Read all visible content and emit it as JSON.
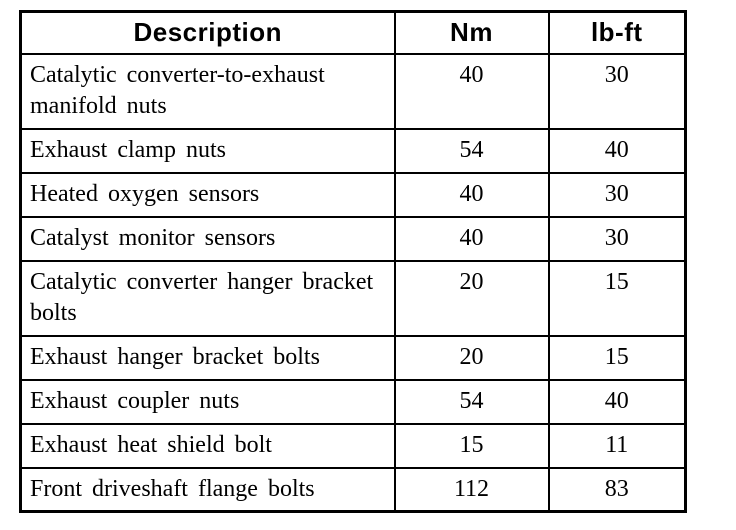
{
  "colors": {
    "border": "#000000",
    "text": "#000000",
    "background": "#ffffff"
  },
  "table": {
    "headers": {
      "description": "Description",
      "nm": "Nm",
      "lbft": "lb-ft"
    },
    "rows": [
      {
        "description": "Catalytic converter-to-exhaust manifold nuts",
        "nm": "40",
        "lbft": "30"
      },
      {
        "description": "Exhaust clamp nuts",
        "nm": "54",
        "lbft": "40"
      },
      {
        "description": "Heated oxygen sensors",
        "nm": "40",
        "lbft": "30"
      },
      {
        "description": "Catalyst monitor sensors",
        "nm": "40",
        "lbft": "30"
      },
      {
        "description": "Catalytic converter hanger bracket bolts",
        "nm": "20",
        "lbft": "15"
      },
      {
        "description": "Exhaust hanger bracket bolts",
        "nm": "20",
        "lbft": "15"
      },
      {
        "description": "Exhaust coupler nuts",
        "nm": "54",
        "lbft": "40"
      },
      {
        "description": "Exhaust heat shield bolt",
        "nm": "15",
        "lbft": "11"
      },
      {
        "description": "Front driveshaft flange bolts",
        "nm": "112",
        "lbft": "83"
      }
    ]
  }
}
